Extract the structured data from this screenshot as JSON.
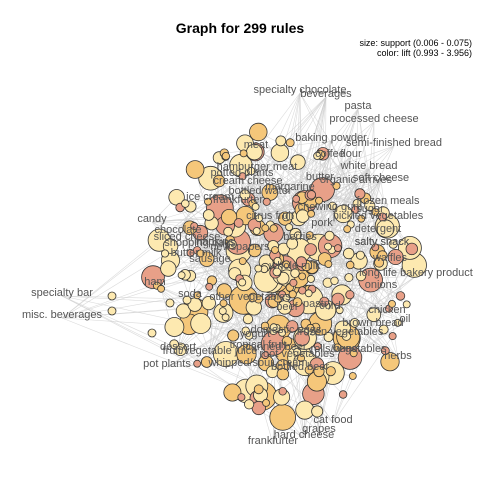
{
  "title": "Graph for 299 rules",
  "legend": {
    "size": "size: support (0.006 - 0.075)",
    "color": "color: lift (0.993 - 3.956)"
  },
  "colors": {
    "node_low_lift": "#fde9b0",
    "node_mid_lift": "#f5c77a",
    "node_high_lift": "#e8a088",
    "item_node": "#f1d27a",
    "edge": "#cccccc",
    "label": "#555555"
  },
  "items": [
    "specialty chocolate",
    "beverages",
    "pasta",
    "processed cheese",
    "baking powder",
    "semi-finished bread",
    "meat",
    "coffee",
    "flour",
    "white bread",
    "hamburger meat",
    "potted plants",
    "soft cheese",
    "organic arrives",
    "frankfurter",
    "frozen meals",
    "sugar",
    "pickled vegetables",
    "candy",
    "chocolate",
    "detergent",
    "salty snack",
    "butter milk",
    "whole milk",
    "waffles",
    "long life bakery product",
    "onions",
    "ham",
    "specialty bar",
    "misc. beverages",
    "chicken",
    "oil",
    "brown bread",
    "dessert",
    "herbs",
    "pot plants",
    "cat food",
    "grapes",
    "hard cheese",
    "frankfurter",
    "sliced cheese",
    "sausage",
    "soda",
    "other vegetables",
    "yogurt",
    "tropical fruit",
    "fruit/vegetable juice",
    "whipped/sour cream",
    "root vegetables",
    "rolls/buns",
    "pastry",
    "vegetables",
    "domestic eggs",
    "curd",
    "beef",
    "pork",
    "citrus fruit",
    "cream cheese",
    "bottled water",
    "margarine",
    "napkins",
    "newspapers",
    "shopping bags",
    "berries",
    "butter",
    "ice cream",
    "canned beer",
    "bottled beer",
    "frozen vegetables",
    "salty snack",
    "chewing gum"
  ]
}
